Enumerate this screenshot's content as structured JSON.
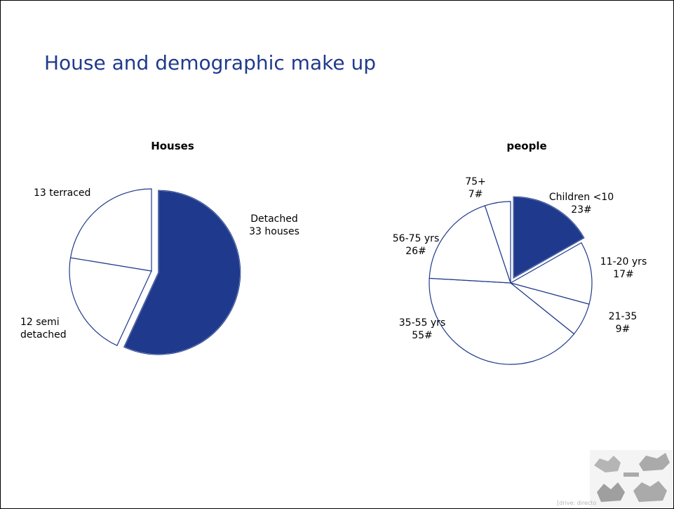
{
  "slide": {
    "title": "House and demographic make up",
    "footer_text": "[drive: directo"
  },
  "colors": {
    "accent": "#1f3a8c",
    "outline": "#1f3a8c",
    "background": "#ffffff"
  },
  "chart_data": [
    {
      "type": "pie",
      "title": "Houses",
      "slices": [
        {
          "name": "Detached",
          "value": 33,
          "label_lines": [
            "Detached",
            "33 houses"
          ],
          "filled": true,
          "exploded": true
        },
        {
          "name": "12 semi detached",
          "value": 12,
          "label_lines": [
            "12 semi",
            "detached"
          ],
          "filled": false,
          "exploded": false
        },
        {
          "name": "13 terraced",
          "value": 13,
          "label_lines": [
            "13 terraced"
          ],
          "filled": false,
          "exploded": false
        }
      ]
    },
    {
      "type": "pie",
      "title": "people",
      "slices": [
        {
          "name": "Children <10",
          "value": 23,
          "label_lines": [
            "Children <10",
            "23#"
          ],
          "filled": true,
          "exploded": true
        },
        {
          "name": "11-20 yrs",
          "value": 17,
          "label_lines": [
            "11-20 yrs",
            "17#"
          ],
          "filled": false,
          "exploded": false
        },
        {
          "name": "21-35",
          "value": 9,
          "label_lines": [
            "21-35",
            "9#"
          ],
          "filled": false,
          "exploded": false
        },
        {
          "name": "35-55 yrs",
          "value": 55,
          "label_lines": [
            "35-55 yrs",
            "55#"
          ],
          "filled": false,
          "exploded": false
        },
        {
          "name": "56-75 yrs",
          "value": 26,
          "label_lines": [
            "56-75 yrs",
            "26#"
          ],
          "filled": false,
          "exploded": false
        },
        {
          "name": "75+",
          "value": 7,
          "label_lines": [
            "75+",
            "7#"
          ],
          "filled": false,
          "exploded": false
        }
      ]
    }
  ]
}
